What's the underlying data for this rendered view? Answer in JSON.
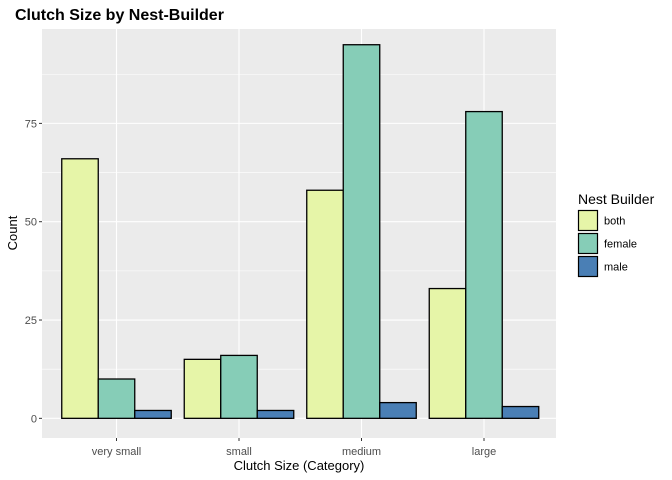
{
  "chart_data": {
    "type": "bar",
    "title": "Clutch Size by Nest-Builder",
    "xlabel": "Clutch Size (Category)",
    "ylabel": "Count",
    "categories": [
      "very small",
      "small",
      "medium",
      "large"
    ],
    "yticks": [
      "0",
      "25",
      "50",
      "75"
    ],
    "ylim": [
      -5,
      99
    ],
    "grid": true,
    "legend": {
      "title": "Nest Builder",
      "position": "right"
    },
    "series": [
      {
        "name": "both",
        "color": "#E6F5A8",
        "values": [
          66,
          15,
          58,
          33
        ]
      },
      {
        "name": "female",
        "color": "#86CDB7",
        "values": [
          10,
          16,
          95,
          78
        ]
      },
      {
        "name": "male",
        "color": "#4A7FB5",
        "values": [
          2,
          2,
          4,
          3
        ]
      }
    ]
  }
}
